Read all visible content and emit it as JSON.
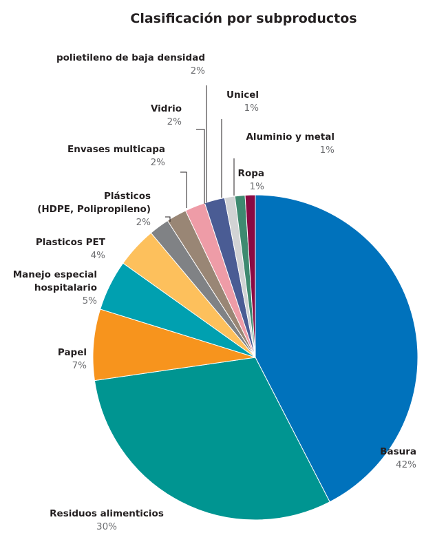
{
  "chart_data": {
    "type": "pie",
    "title": "Clasificación por subproductos",
    "slices": [
      {
        "name": "Basura",
        "lines": [
          "Basura"
        ],
        "value": 42,
        "pct_label": "42%",
        "color": "#0072bc"
      },
      {
        "name": "Residuos alimenticios",
        "lines": [
          "Residuos alimenticios"
        ],
        "value": 30,
        "pct_label": "30%",
        "color": "#009591"
      },
      {
        "name": "Papel",
        "lines": [
          "Papel"
        ],
        "value": 7,
        "pct_label": "7%",
        "color": "#f7941d"
      },
      {
        "name": "Manejo especial hospitalario",
        "lines": [
          "Manejo especial",
          "hospitalario"
        ],
        "value": 5,
        "pct_label": "5%",
        "color": "#00a0b0"
      },
      {
        "name": "Plasticos PET",
        "lines": [
          "Plasticos PET"
        ],
        "value": 4,
        "pct_label": "4%",
        "color": "#fdc05c"
      },
      {
        "name": "Plásticos (HDPE, Polipropileno)",
        "lines": [
          "Plásticos",
          "(HDPE, Polipropileno)"
        ],
        "value": 2,
        "pct_label": "2%",
        "color": "#808285"
      },
      {
        "name": "Envases multicapa",
        "lines": [
          "Envases multicapa"
        ],
        "value": 2,
        "pct_label": "2%",
        "color": "#998675"
      },
      {
        "name": "Vidrio",
        "lines": [
          "Vidrio"
        ],
        "value": 2,
        "pct_label": "2%",
        "color": "#ee9ca7"
      },
      {
        "name": "polietileno de baja densidad",
        "lines": [
          "polietileno de baja densidad"
        ],
        "value": 2,
        "pct_label": "2%",
        "color": "#4a5c94"
      },
      {
        "name": "Unicel",
        "lines": [
          "Unicel"
        ],
        "value": 1,
        "pct_label": "1%",
        "color": "#d1d3d4"
      },
      {
        "name": "Aluminio y metal",
        "lines": [
          "Aluminio y metal"
        ],
        "value": 1,
        "pct_label": "1%",
        "color": "#3e8a70"
      },
      {
        "name": "Ropa",
        "lines": [
          "Ropa"
        ],
        "value": 1,
        "pct_label": "1%",
        "color": "#8b0a43"
      }
    ]
  }
}
